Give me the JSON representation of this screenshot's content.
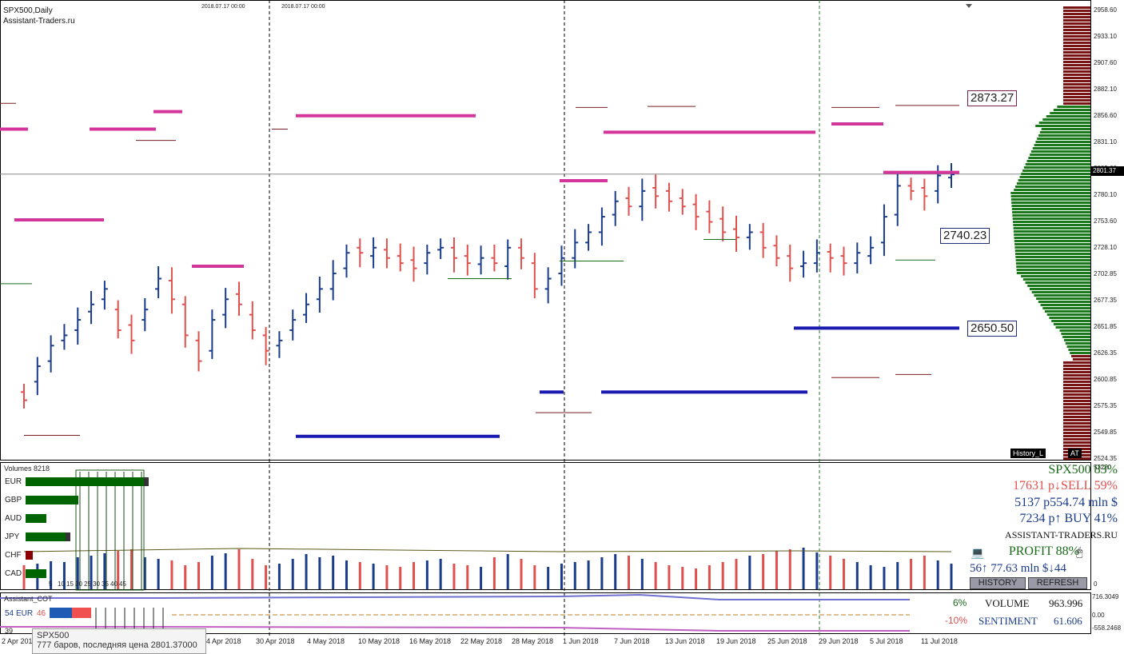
{
  "chart_header": {
    "symbol": "SPX500,Daily",
    "site": "Assistant-Traders.ru",
    "date_label_1": "2018.07.17 00:00",
    "date_label_2": "2018.07.17 00:00"
  },
  "price_axis": [
    "2958.60",
    "2933.10",
    "2907.60",
    "2882.10",
    "2856.60",
    "2831.10",
    "2805.60",
    "2780.10",
    "2753.60",
    "2728.10",
    "2702.85",
    "2677.35",
    "2651.85",
    "2626.35",
    "2600.85",
    "2575.35",
    "2549.85",
    "2524.35"
  ],
  "current_price": "2801.37",
  "price_boxes": [
    {
      "value": "2873.27",
      "color": "#7a1f4e"
    },
    {
      "value": "2740.23",
      "color": "#1c2e7a"
    },
    {
      "value": "2650.50",
      "color": "#1c2e7a"
    }
  ],
  "history_label": "History_L",
  "at_label": "AT",
  "volumes": {
    "title": "Volumes 8218",
    "axis_value": "53220",
    "currencies": [
      {
        "code": "EUR",
        "value": 0.74,
        "color": "#006400",
        "tail": "#333333"
      },
      {
        "code": "GBP",
        "value": 0.3,
        "color": "#006400",
        "tail": "#006400"
      },
      {
        "code": "AUD",
        "value": 0.1,
        "color": "#006400",
        "tail": "#006400"
      },
      {
        "code": "JPY",
        "value": 0.25,
        "color": "#006400",
        "tail": "#333333"
      },
      {
        "code": "CHF",
        "value": 0.0,
        "color": "#8b0000",
        "tail": "#8b0000"
      },
      {
        "code": "CAD",
        "value": 0.1,
        "color": "#006400",
        "tail": "#006400"
      }
    ],
    "scale": [
      "5",
      "10",
      "15",
      "20",
      "25",
      "30",
      "35",
      "40",
      "45"
    ]
  },
  "right_panel": {
    "spx": "SPX500 83%",
    "sell": "17631 p↓SELL 59%",
    "sum": "5137 p554.74 mln $",
    "buy": "7234 p↑ BUY 41%",
    "site": "ASSISTANT-TRADERS.RU",
    "profit": "PROFIT 88%",
    "bottom": "56↑ 77.63 mln $↓44",
    "history_btn": "HISTORY",
    "refresh_btn": "REFRESH",
    "zero": "0"
  },
  "cot": {
    "title": "Assistant_COT",
    "eur_left": "54",
    "eur_code": "EUR",
    "eur_right": "46",
    "val_39": "39",
    "pct_up": "6%",
    "pct_down": "-10%",
    "volume_label": "VOLUME",
    "volume_value": "963.996",
    "sentiment_label": "SENTIMENT",
    "sentiment_value": "61.606",
    "axis": [
      "716.3049",
      "0.00",
      "-558.2468"
    ]
  },
  "dates": [
    "2 Apr 2018",
    "4 Apr 2018",
    "30 Apr 2018",
    "4 May 2018",
    "10 May 2018",
    "16 May 2018",
    "22 May 2018",
    "28 May 2018",
    "1 Jun 2018",
    "7 Jun 2018",
    "13 Jun 2018",
    "19 Jun 2018",
    "25 Jun 2018",
    "29 Jun 2018",
    "5 Jul 2018",
    "11 Jul 2018"
  ],
  "tooltip": {
    "line1": "SPX500",
    "line2": "777 баров, последняя цена 2801.37000"
  },
  "colors": {
    "bull": "#1a3c8c",
    "bear": "#e0504e",
    "magenta": "#d4359a",
    "darkred": "#7a1f1f",
    "green": "#1a6b1a"
  },
  "chart_data": {
    "type": "candlestick",
    "dates_shown": [
      "2 Apr 2018",
      "4 Apr 2018",
      "30 Apr 2018",
      "4 May 2018",
      "10 May 2018",
      "16 May 2018",
      "22 May 2018",
      "28 May 2018",
      "1 Jun 2018",
      "7 Jun 2018",
      "13 Jun 2018",
      "19 Jun 2018",
      "25 Jun 2018",
      "29 Jun 2018",
      "5 Jul 2018",
      "11 Jul 2018"
    ],
    "ylim": [
      2524.35,
      2958.6
    ],
    "close": [
      2582,
      2615,
      2635,
      2645,
      2660,
      2675,
      2690,
      2650,
      2640,
      2670,
      2700,
      2680,
      2645,
      2620,
      2660,
      2680,
      2675,
      2650,
      2630,
      2640,
      2660,
      2675,
      2690,
      2705,
      2725,
      2725,
      2730,
      2720,
      2715,
      2710,
      2725,
      2730,
      2720,
      2715,
      2720,
      2715,
      2730,
      2720,
      2690,
      2700,
      2720,
      2735,
      2745,
      2760,
      2775,
      2770,
      2785,
      2780,
      2775,
      2770,
      2760,
      2755,
      2745,
      2740,
      2745,
      2730,
      2720,
      2710,
      2715,
      2725,
      2720,
      2715,
      2725,
      2730,
      2760,
      2790,
      2785,
      2780,
      2800,
      2801
    ],
    "open": [
      2590,
      2600,
      2620,
      2640,
      2650,
      2668,
      2680,
      2670,
      2655,
      2660,
      2690,
      2698,
      2675,
      2640,
      2630,
      2665,
      2685,
      2665,
      2645,
      2635,
      2650,
      2665,
      2680,
      2690,
      2710,
      2730,
      2722,
      2728,
      2722,
      2718,
      2715,
      2728,
      2730,
      2722,
      2714,
      2720,
      2712,
      2730,
      2715,
      2690,
      2705,
      2720,
      2735,
      2745,
      2762,
      2778,
      2770,
      2788,
      2785,
      2778,
      2772,
      2765,
      2758,
      2748,
      2740,
      2745,
      2732,
      2722,
      2712,
      2715,
      2726,
      2722,
      2715,
      2722,
      2735,
      2762,
      2790,
      2788,
      2785,
      2798
    ],
    "volumes": [
      30,
      32,
      35,
      34,
      40,
      42,
      45,
      48,
      50,
      40,
      38,
      36,
      30,
      34,
      42,
      45,
      50,
      38,
      30,
      32,
      38,
      44,
      40,
      42,
      36,
      34,
      32,
      30,
      28,
      34,
      36,
      38,
      32,
      30,
      28,
      40,
      44,
      38,
      30,
      28,
      32,
      34,
      36,
      40,
      44,
      42,
      38,
      34,
      30,
      28,
      26,
      30,
      34,
      38,
      42,
      44,
      48,
      50,
      52,
      46,
      42,
      38,
      34,
      30,
      28,
      34,
      38,
      42,
      36,
      32
    ]
  }
}
